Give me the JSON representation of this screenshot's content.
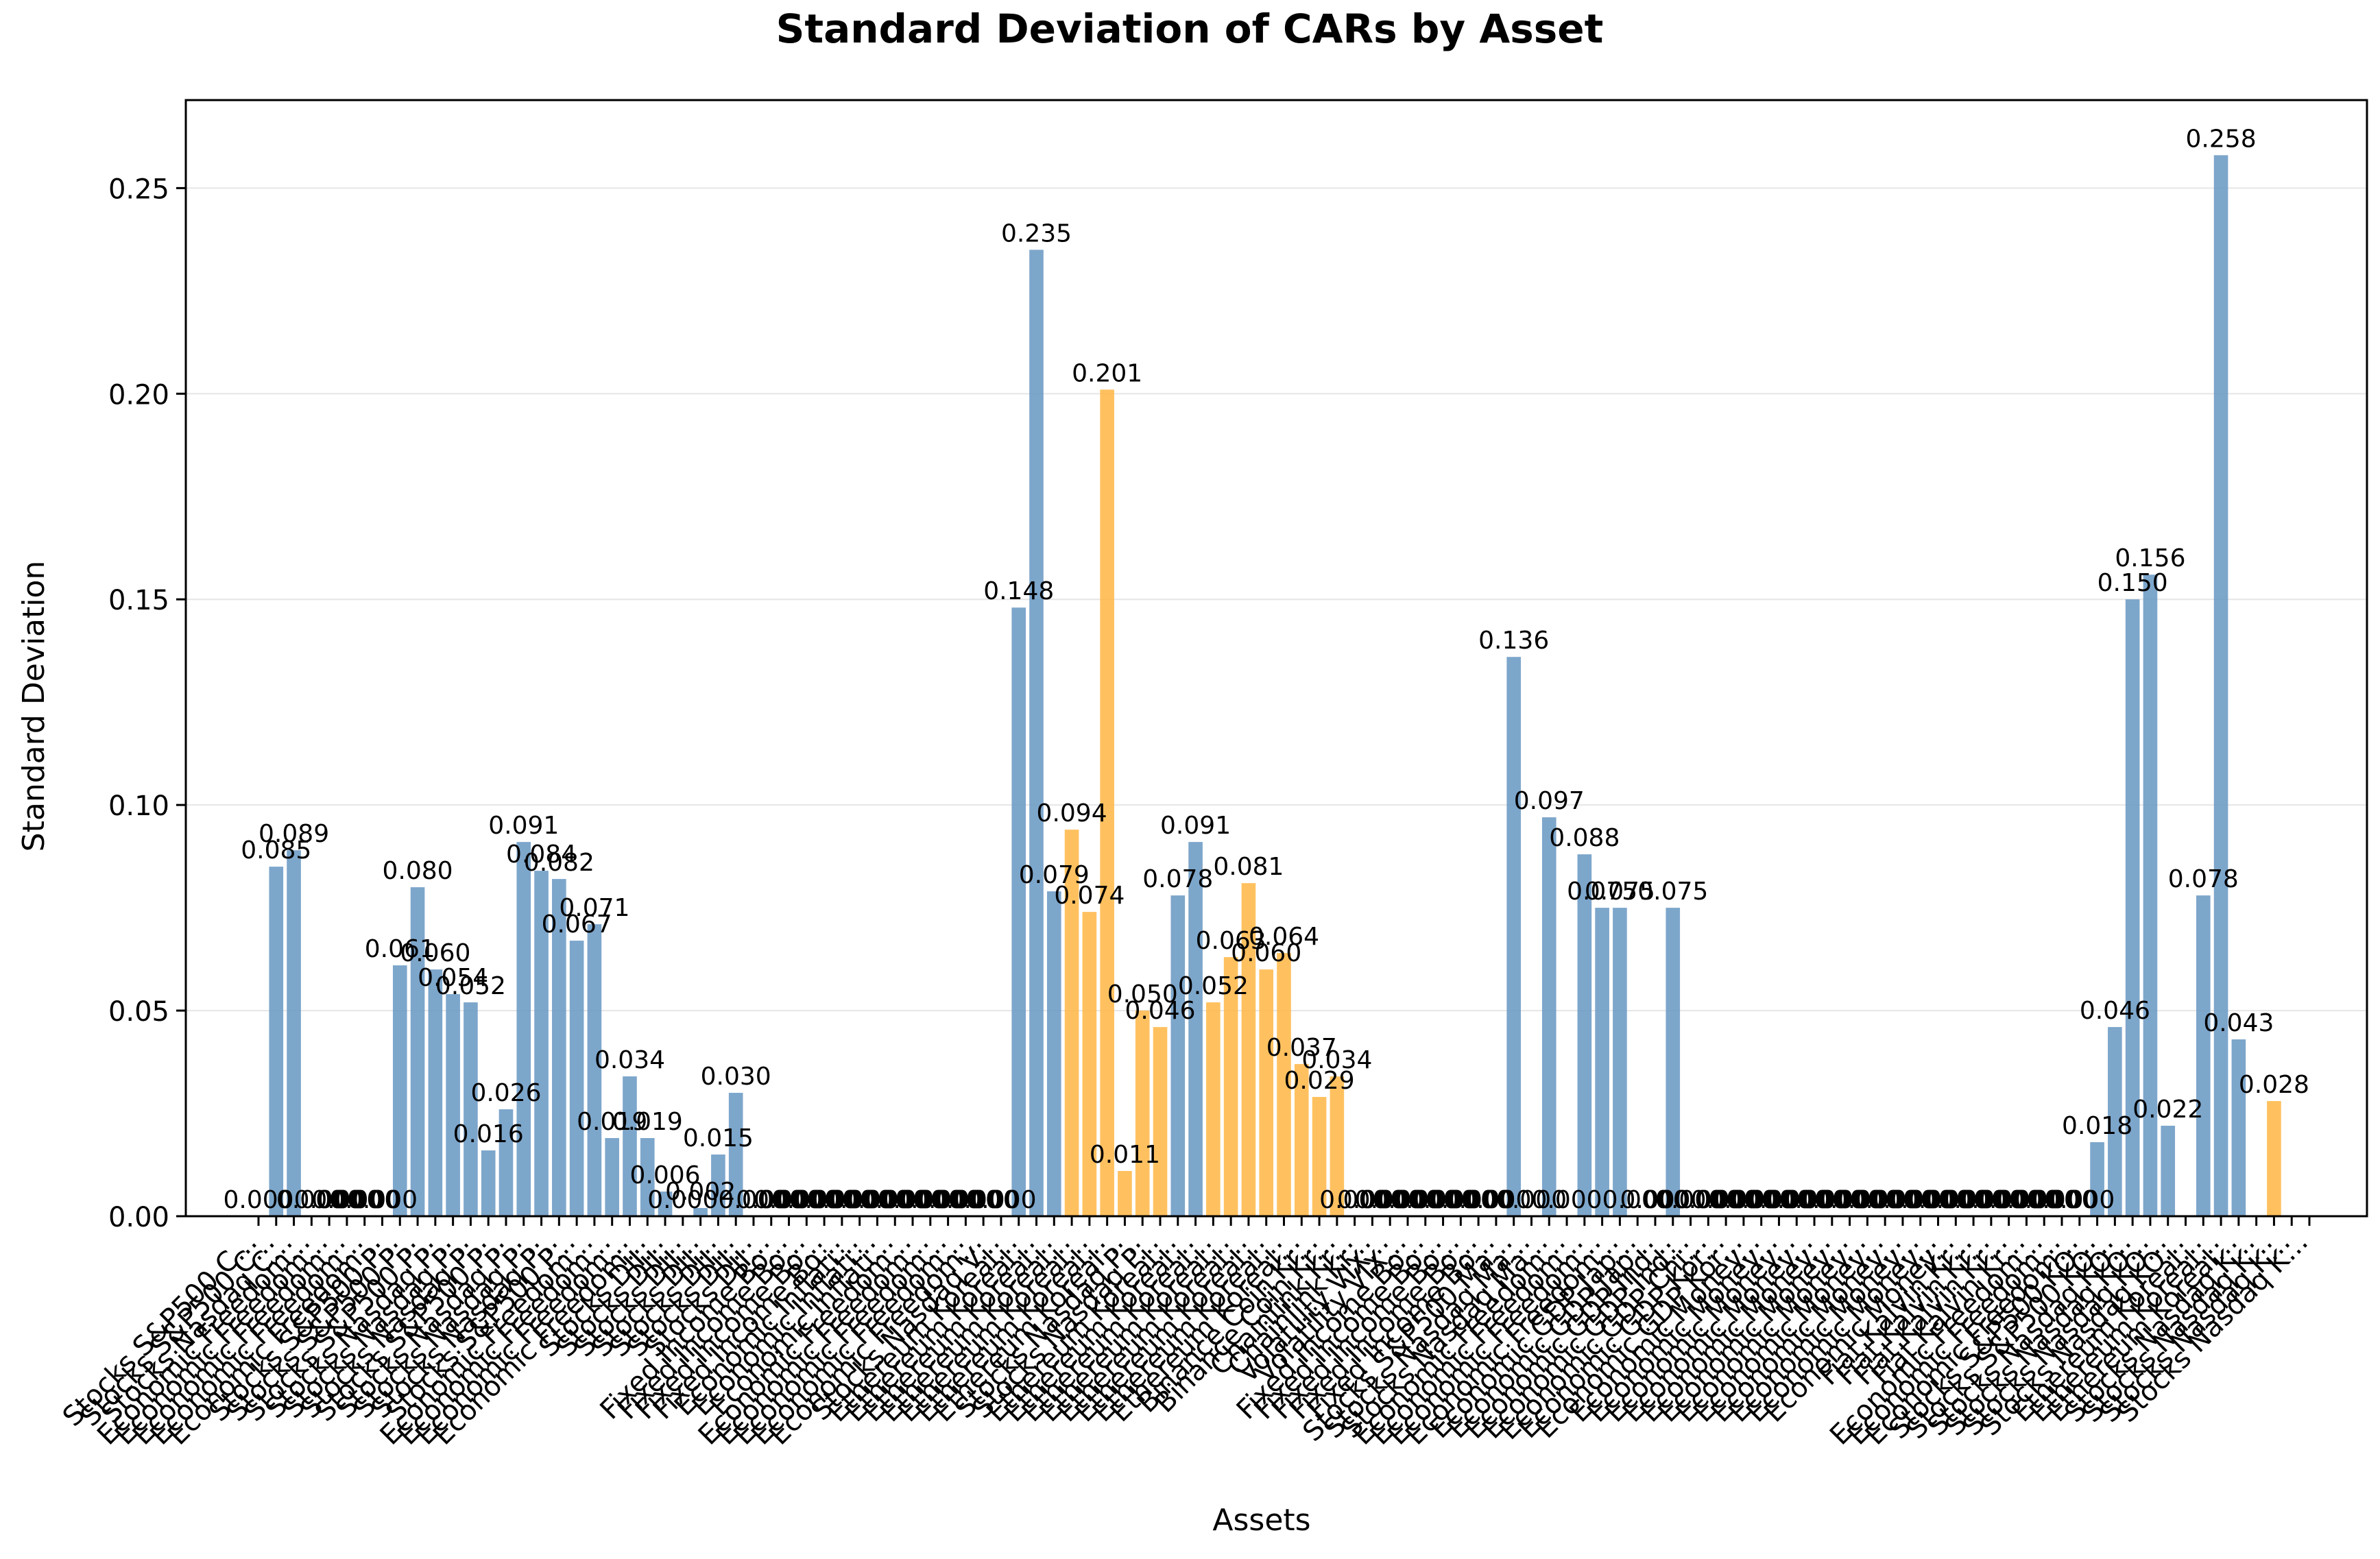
{
  "chart_data": {
    "type": "bar",
    "title": "Standard Deviation of CARs by Asset",
    "xlabel": "Assets",
    "ylabel": "Standard Deviation",
    "ylim": [
      0,
      0.2714
    ],
    "yticks": [
      "0.00",
      "0.05",
      "0.10",
      "0.15",
      "0.20",
      "0.25"
    ],
    "grid": "horizontal",
    "colors": {
      "blue": "#6b9ac4",
      "orange": "#ffb84a",
      "grid": "#e6e6e6"
    },
    "bars": [
      {
        "label": "Stocks S&P500 C...",
        "value": 0.0,
        "color": "blue",
        "text": "0.000"
      },
      {
        "label": "Stocks S&P500 C...",
        "value": 0.085,
        "color": "blue",
        "text": "0.085"
      },
      {
        "label": "Stocks Nasdaq C...",
        "value": 0.089,
        "color": "blue",
        "text": "0.089"
      },
      {
        "label": "Economic Freedom...",
        "value": 0.0,
        "color": "blue",
        "text": "0.000"
      },
      {
        "label": "Economic Freedom...",
        "value": 0.0,
        "color": "blue",
        "text": "0.000"
      },
      {
        "label": "Economic Freedom...",
        "value": 0.0,
        "color": "blue",
        "text": "0.000"
      },
      {
        "label": "Economic Freedom...",
        "value": 0.0,
        "color": "blue",
        "text": "0.000"
      },
      {
        "label": "Economic Freedom...",
        "value": 0.0,
        "color": "blue",
        "text": "0.000"
      },
      {
        "label": "Stocks S&P500 P...",
        "value": 0.061,
        "color": "blue",
        "text": "0.061"
      },
      {
        "label": "Stocks S&P500 P...",
        "value": 0.08,
        "color": "blue",
        "text": "0.080"
      },
      {
        "label": "Stocks S&P500 P...",
        "value": 0.06,
        "color": "blue",
        "text": "0.060"
      },
      {
        "label": "Stocks Nasdaq P...",
        "value": 0.054,
        "color": "blue",
        "text": "0.054"
      },
      {
        "label": "Stocks Nasdaq P...",
        "value": 0.052,
        "color": "blue",
        "text": "0.052"
      },
      {
        "label": "Stocks Nasdaq P...",
        "value": 0.016,
        "color": "blue",
        "text": "0.016"
      },
      {
        "label": "Stocks S&P500 P...",
        "value": 0.026,
        "color": "blue",
        "text": "0.026"
      },
      {
        "label": "Stocks Nasdaq P...",
        "value": 0.091,
        "color": "blue",
        "text": "0.091"
      },
      {
        "label": "Stocks Nasdaq P...",
        "value": 0.084,
        "color": "blue",
        "text": "0.084"
      },
      {
        "label": "Stocks Nasdaq P...",
        "value": 0.082,
        "color": "blue",
        "text": "0.082"
      },
      {
        "label": "Stocks S&P500 P...",
        "value": 0.067,
        "color": "blue",
        "text": "0.067"
      },
      {
        "label": "Economic Freedom...",
        "value": 0.071,
        "color": "blue",
        "text": "0.071"
      },
      {
        "label": "Economic Freedom...",
        "value": 0.019,
        "color": "blue",
        "text": "0.019"
      },
      {
        "label": "Economic Freedom...",
        "value": 0.034,
        "color": "blue",
        "text": "0.034"
      },
      {
        "label": "Economic Freedom...",
        "value": 0.019,
        "color": "blue",
        "text": "0.019"
      },
      {
        "label": "Stocks DJI...",
        "value": 0.006,
        "color": "blue",
        "text": "0.006"
      },
      {
        "label": "Stocks DJI...",
        "value": 0.0,
        "color": "blue",
        "text": "0.000"
      },
      {
        "label": "Stocks DJI...",
        "value": 0.002,
        "color": "blue",
        "text": "0.002"
      },
      {
        "label": "Stocks DJI...",
        "value": 0.015,
        "color": "blue",
        "text": "0.015"
      },
      {
        "label": "Stocks DJI...",
        "value": 0.03,
        "color": "blue",
        "text": "0.030"
      },
      {
        "label": "Stocks DJI...",
        "value": 0.0,
        "color": "blue",
        "text": "0.000"
      },
      {
        "label": "Stocks DJI...",
        "value": 0.0,
        "color": "blue",
        "text": "0.000"
      },
      {
        "label": "Fixed Income Bo...",
        "value": 0.0,
        "color": "blue",
        "text": "0.000"
      },
      {
        "label": "Fixed Income Bo...",
        "value": 0.0,
        "color": "blue",
        "text": "0.000"
      },
      {
        "label": "Fixed Income Bo...",
        "value": 0.0,
        "color": "blue",
        "text": "0.000"
      },
      {
        "label": "Fixed Income Bo...",
        "value": 0.0,
        "color": "blue",
        "text": "0.000"
      },
      {
        "label": "Economic Inflati...",
        "value": 0.0,
        "color": "blue",
        "text": "0.000"
      },
      {
        "label": "Economic Inflati...",
        "value": 0.0,
        "color": "blue",
        "text": "0.000"
      },
      {
        "label": "Economic Inflati...",
        "value": 0.0,
        "color": "blue",
        "text": "0.000"
      },
      {
        "label": "Economic Freedom...",
        "value": 0.0,
        "color": "blue",
        "text": "0.000"
      },
      {
        "label": "Economic Freedom...",
        "value": 0.0,
        "color": "blue",
        "text": "0.000"
      },
      {
        "label": "Economic Freedom...",
        "value": 0.0,
        "color": "blue",
        "text": "0.000"
      },
      {
        "label": "Economic Freedom...",
        "value": 0.0,
        "color": "blue",
        "text": "0.000"
      },
      {
        "label": "Economic Freedom...",
        "value": 0.0,
        "color": "blue",
        "text": "0.000"
      },
      {
        "label": "Stocks Nasdaq V...",
        "value": 0.0,
        "color": "blue",
        "text": "0.000"
      },
      {
        "label": "Ethereum Koreal...",
        "value": 0.148,
        "color": "blue",
        "text": "0.148"
      },
      {
        "label": "Ethereum Koreal...",
        "value": 0.235,
        "color": "blue",
        "text": "0.235"
      },
      {
        "label": "Ethereum Koreal...",
        "value": 0.079,
        "color": "blue",
        "text": "0.079"
      },
      {
        "label": "Ethereum Koreal...",
        "value": 0.094,
        "color": "orange",
        "text": "0.094"
      },
      {
        "label": "Ethereum Koreal...",
        "value": 0.074,
        "color": "orange",
        "text": "0.074"
      },
      {
        "label": "Ethereum Koreal...",
        "value": 0.201,
        "color": "orange",
        "text": "0.201"
      },
      {
        "label": "Ethereum Koreal...",
        "value": 0.011,
        "color": "orange",
        "text": "0.011"
      },
      {
        "label": "Stocks Nasdaq P...",
        "value": 0.05,
        "color": "orange",
        "text": "0.050"
      },
      {
        "label": "Stocks Nasdaq P...",
        "value": 0.046,
        "color": "orange",
        "text": "0.046"
      },
      {
        "label": "Ethereum Koreal...",
        "value": 0.078,
        "color": "blue",
        "text": "0.078"
      },
      {
        "label": "Ethereum Koreal...",
        "value": 0.091,
        "color": "blue",
        "text": "0.091"
      },
      {
        "label": "Ethereum Koreal...",
        "value": 0.052,
        "color": "orange",
        "text": "0.052"
      },
      {
        "label": "Ethereum Koreal...",
        "value": 0.063,
        "color": "orange",
        "text": "0.063"
      },
      {
        "label": "Ethereum Koreal...",
        "value": 0.081,
        "color": "orange",
        "text": "0.081"
      },
      {
        "label": "Ethereum Koreal...",
        "value": 0.06,
        "color": "orange",
        "text": "0.060"
      },
      {
        "label": "Ethereum Koreal...",
        "value": 0.064,
        "color": "orange",
        "text": "0.064"
      },
      {
        "label": "Ethereum Koreal...",
        "value": 0.037,
        "color": "orange",
        "text": "0.037"
      },
      {
        "label": "Binance Coin Kr...",
        "value": 0.029,
        "color": "orange",
        "text": "0.029"
      },
      {
        "label": "Binance Coin Kr...",
        "value": 0.034,
        "color": "orange",
        "text": "0.034"
      },
      {
        "label": "Chainlink Kr...",
        "value": 0.0,
        "color": "blue",
        "text": "0.000"
      },
      {
        "label": "Chainlink Kr...",
        "value": 0.0,
        "color": "blue",
        "text": "0.000"
      },
      {
        "label": "Volatility VIX...",
        "value": 0.0,
        "color": "blue",
        "text": "0.000"
      },
      {
        "label": "Volatility VIX...",
        "value": 0.0,
        "color": "blue",
        "text": "0.000"
      },
      {
        "label": "Fixed Income Bo...",
        "value": 0.0,
        "color": "blue",
        "text": "0.000"
      },
      {
        "label": "Fixed Income Bo...",
        "value": 0.0,
        "color": "blue",
        "text": "0.000"
      },
      {
        "label": "Fixed Income Bo...",
        "value": 0.0,
        "color": "blue",
        "text": "0.000"
      },
      {
        "label": "Fixed Income Bo...",
        "value": 0.0,
        "color": "blue",
        "text": "0.000"
      },
      {
        "label": "Fixed Income Bo...",
        "value": 0.0,
        "color": "blue",
        "text": "0.000"
      },
      {
        "label": "Stocks S&P500 Ma...",
        "value": 0.136,
        "color": "blue",
        "text": "0.136"
      },
      {
        "label": "Stocks Nasdaq Ma...",
        "value": 0.0,
        "color": "blue",
        "text": "0.000"
      },
      {
        "label": "Stocks Nasdaq Ma...",
        "value": 0.097,
        "color": "blue",
        "text": "0.097"
      },
      {
        "label": "Economic Freedom...",
        "value": 0.0,
        "color": "blue",
        "text": "0.000"
      },
      {
        "label": "Economic Freedom...",
        "value": 0.088,
        "color": "blue",
        "text": "0.088"
      },
      {
        "label": "Economic Freedom...",
        "value": 0.075,
        "color": "blue",
        "text": "0.075"
      },
      {
        "label": "Economic Freedom...",
        "value": 0.075,
        "color": "blue",
        "text": "0.075"
      },
      {
        "label": "Economic GDP Jap...",
        "value": 0.0,
        "color": "blue",
        "text": "0.000"
      },
      {
        "label": "Economic GDP Jap...",
        "value": 0.0,
        "color": "blue",
        "text": "0.000"
      },
      {
        "label": "Economic GDP Ind...",
        "value": 0.075,
        "color": "blue",
        "text": "0.075"
      },
      {
        "label": "Economic GDP Ind...",
        "value": 0.0,
        "color": "blue",
        "text": "0.000"
      },
      {
        "label": "Economic GDP Chi...",
        "value": 0.0,
        "color": "blue",
        "text": "0.000"
      },
      {
        "label": "Economic GDP Kor...",
        "value": 0.0,
        "color": "blue",
        "text": "0.000"
      },
      {
        "label": "Economic GDP Kor...",
        "value": 0.0,
        "color": "blue",
        "text": "0.000"
      },
      {
        "label": "Economic Money...",
        "value": 0.0,
        "color": "blue",
        "text": "0.000"
      },
      {
        "label": "Economic Money...",
        "value": 0.0,
        "color": "blue",
        "text": "0.000"
      },
      {
        "label": "Economic Money...",
        "value": 0.0,
        "color": "blue",
        "text": "0.000"
      },
      {
        "label": "Economic Money...",
        "value": 0.0,
        "color": "blue",
        "text": "0.000"
      },
      {
        "label": "Economic Money...",
        "value": 0.0,
        "color": "blue",
        "text": "0.000"
      },
      {
        "label": "Economic Money...",
        "value": 0.0,
        "color": "blue",
        "text": "0.000"
      },
      {
        "label": "Economic Money...",
        "value": 0.0,
        "color": "blue",
        "text": "0.000"
      },
      {
        "label": "Economic Money...",
        "value": 0.0,
        "color": "blue",
        "text": "0.000"
      },
      {
        "label": "Economic Money...",
        "value": 0.0,
        "color": "blue",
        "text": "0.000"
      },
      {
        "label": "Economic Money...",
        "value": 0.0,
        "color": "blue",
        "text": "0.000"
      },
      {
        "label": "Economic Money...",
        "value": 0.0,
        "color": "blue",
        "text": "0.000"
      },
      {
        "label": "Economic Money...",
        "value": 0.0,
        "color": "blue",
        "text": "0.000"
      },
      {
        "label": "Fiat Kalvin Kr...",
        "value": 0.0,
        "color": "blue",
        "text": "0.000"
      },
      {
        "label": "Fiat Kalvin Kr...",
        "value": 0.0,
        "color": "blue",
        "text": "0.000"
      },
      {
        "label": "Fiat Kalvin Kr...",
        "value": 0.0,
        "color": "blue",
        "text": "0.000"
      },
      {
        "label": "Fiat Kalvin Kr...",
        "value": 0.0,
        "color": "blue",
        "text": "0.000"
      },
      {
        "label": "Economic Freedom...",
        "value": 0.0,
        "color": "blue",
        "text": "0.000"
      },
      {
        "label": "Economic Freedom...",
        "value": 0.0,
        "color": "blue",
        "text": "0.000"
      },
      {
        "label": "Economic Freedom...",
        "value": 0.0,
        "color": "blue",
        "text": "0.000"
      },
      {
        "label": "Stocks S&P500 KO...",
        "value": 0.018,
        "color": "blue",
        "text": "0.018"
      },
      {
        "label": "Stocks S&P500 KO...",
        "value": 0.046,
        "color": "blue",
        "text": "0.046"
      },
      {
        "label": "Stocks Nasdaq KO...",
        "value": 0.15,
        "color": "blue",
        "text": "0.150"
      },
      {
        "label": "Stocks Nasdaq KO...",
        "value": 0.156,
        "color": "blue",
        "text": "0.156"
      },
      {
        "label": "Stocks Nasdaq KO...",
        "value": 0.022,
        "color": "blue",
        "text": "0.022"
      },
      {
        "label": "Stocks Nasdaq KO...",
        "value": null,
        "color": "blue",
        "text": ""
      },
      {
        "label": "Ethereum Koreal...",
        "value": 0.078,
        "color": "blue",
        "text": "0.078"
      },
      {
        "label": "Ethereum Koreal...",
        "value": 0.258,
        "color": "blue",
        "text": "0.258"
      },
      {
        "label": "Ethereum Koreal...",
        "value": 0.043,
        "color": "blue",
        "text": "0.043"
      },
      {
        "label": "Stocks Nasdaq K...",
        "value": null,
        "color": "orange",
        "text": ""
      },
      {
        "label": "Stocks Nasdaq K...",
        "value": 0.028,
        "color": "orange",
        "text": "0.028"
      },
      {
        "label": "Stocks Nasdaq K...",
        "value": null,
        "color": "orange",
        "text": ""
      },
      {
        "label": "Stocks Nasdaq K...",
        "value": null,
        "color": "orange",
        "text": ""
      }
    ]
  }
}
